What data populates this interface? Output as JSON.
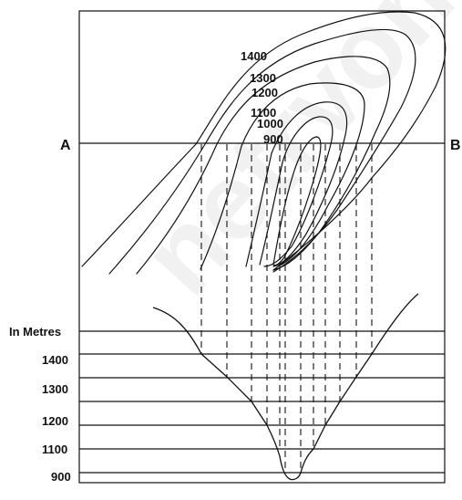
{
  "section_line": {
    "start_label": "A",
    "end_label": "B"
  },
  "contour_labels": [
    "1400",
    "1300",
    "1200",
    "1100",
    "1000",
    "900"
  ],
  "profile_axis": {
    "unit_label": "In Metres",
    "levels": [
      "1400",
      "1300",
      "1200",
      "1100",
      "900"
    ]
  },
  "watermark": "netrvon"
}
